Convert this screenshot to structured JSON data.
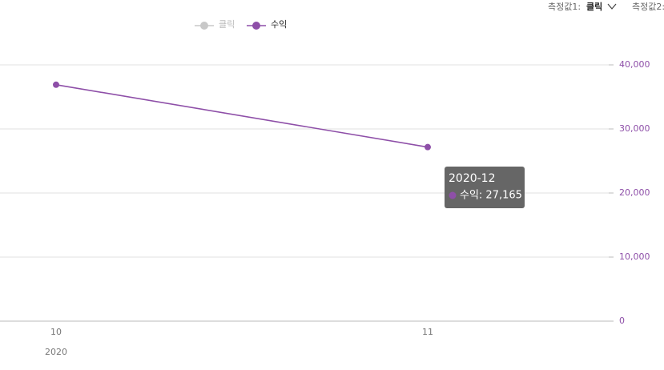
{
  "controls": {
    "measure1_label": "측정값1:",
    "measure1_value": "클릭",
    "measure2_label": "측정값2:"
  },
  "chart_data": {
    "type": "line",
    "categories": [
      "10",
      "11"
    ],
    "x_group_label": "2020",
    "series": [
      {
        "name": "클릭",
        "color": "#c8c8c8",
        "hidden": true,
        "values": [
          null,
          null
        ]
      },
      {
        "name": "수익",
        "color": "#8e4fa8",
        "axis": "y2",
        "values": [
          36900,
          27165
        ]
      }
    ],
    "y2lim": [
      0,
      40000
    ],
    "y2ticks": [
      0,
      {
        "value": 10000,
        "label": "10,000"
      },
      {
        "value": 20000,
        "label": "20,000"
      },
      {
        "value": 30000,
        "label": "30,000"
      },
      {
        "value": 40000,
        "label": "40,000"
      }
    ],
    "grid": true,
    "tooltip": {
      "title": "2020-12",
      "text": "수익: 27,165"
    }
  }
}
